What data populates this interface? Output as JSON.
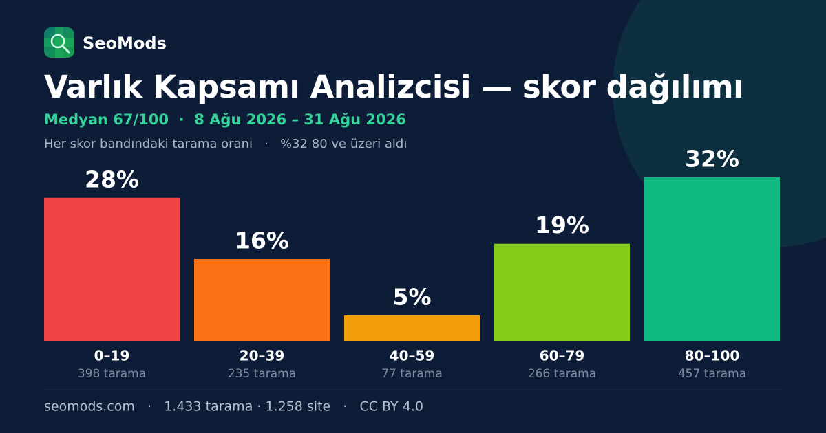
{
  "brand": "SeoMods",
  "chart_data": {
    "type": "bar",
    "title": "Varlık Kapsamı Analizcisi — skor dağılımı",
    "subtitle": "Medyan 67/100  ·  8 Ağu 2026 – 31 Ağu 2026",
    "note": "Her skor bandındaki tarama oranı   ·   %32 80 ve üzeri aldı",
    "categories": [
      "0–19",
      "20–39",
      "40–59",
      "60–79",
      "80–100"
    ],
    "values": [
      28,
      16,
      5,
      19,
      32
    ],
    "value_labels": [
      "28%",
      "16%",
      "5%",
      "19%",
      "32%"
    ],
    "counts": [
      "398 tarama",
      "235 tarama",
      "77 tarama",
      "266 tarama",
      "457 tarama"
    ],
    "colors": [
      "#ef4444",
      "#f97316",
      "#f59e0b",
      "#84cc16",
      "#10b981"
    ]
  },
  "footer": "seomods.com   ·   1.433 tarama · 1.258 site   ·   CC BY 4.0"
}
